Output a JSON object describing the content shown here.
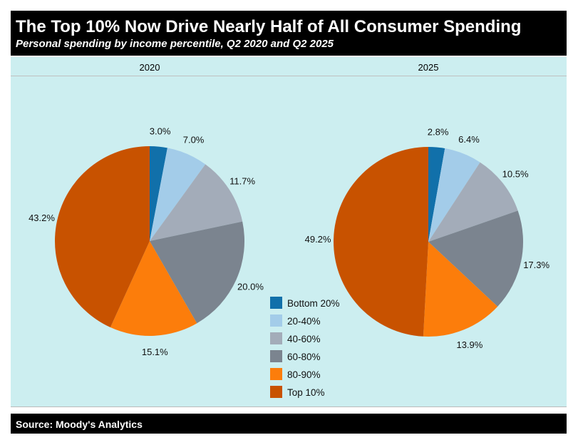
{
  "title": "The Top 10% Now Drive Nearly Half of All Consumer Spending",
  "subtitle": "Personal spending by income percentile, Q2 2020 and Q2 2025",
  "source": "Source: Moody's Analytics",
  "chart_data": [
    {
      "type": "pie",
      "title": "2020",
      "categories": [
        "Bottom 20%",
        "20-40%",
        "40-60%",
        "60-80%",
        "80-90%",
        "Top 10%"
      ],
      "values": [
        3.0,
        7.0,
        11.7,
        20.0,
        15.1,
        43.2
      ],
      "labels": [
        "3.0%",
        "7.0%",
        "11.7%",
        "20.0%",
        "15.1%",
        "43.2%"
      ]
    },
    {
      "type": "pie",
      "title": "2025",
      "categories": [
        "Bottom 20%",
        "20-40%",
        "40-60%",
        "60-80%",
        "80-90%",
        "Top 10%"
      ],
      "values": [
        2.8,
        6.4,
        10.5,
        17.3,
        13.9,
        49.2
      ],
      "labels": [
        "2.8%",
        "6.4%",
        "10.5%",
        "17.3%",
        "13.9%",
        "49.2%"
      ]
    }
  ],
  "legend": {
    "placement": "center-bottom",
    "items": [
      "Bottom 20%",
      "20-40%",
      "40-60%",
      "60-80%",
      "80-90%",
      "Top 10%"
    ]
  },
  "colors": [
    "#1170aa",
    "#a3cce9",
    "#a3acb9",
    "#7b848f",
    "#fc7d0b",
    "#c85200"
  ]
}
